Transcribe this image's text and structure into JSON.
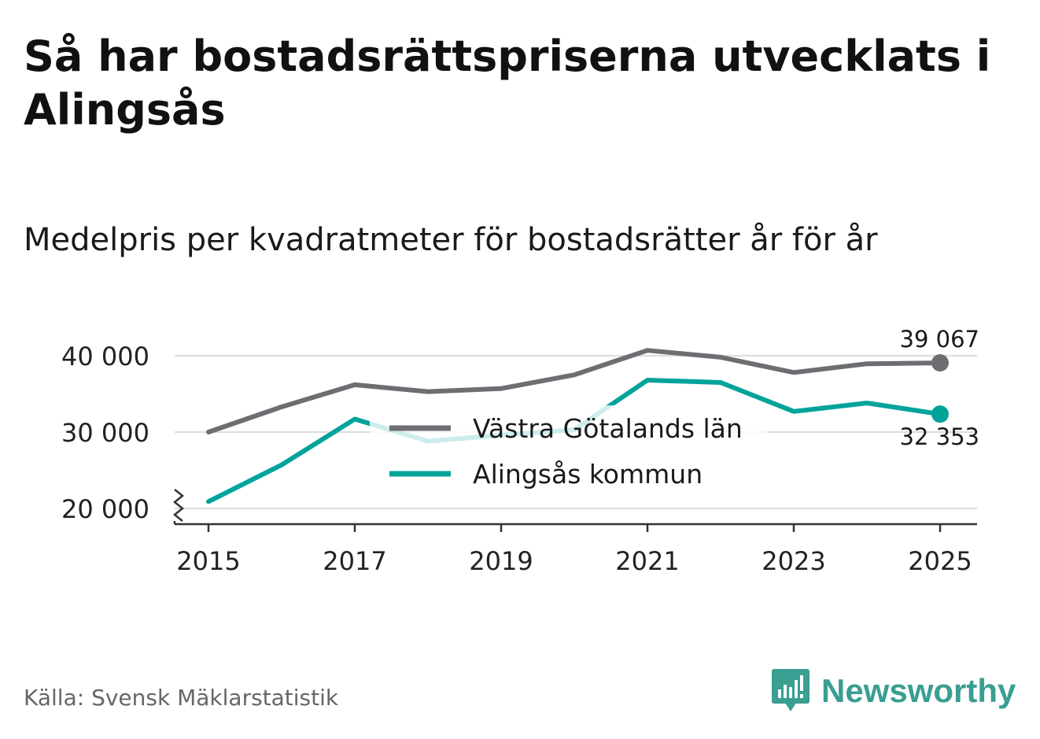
{
  "title": "Så har bostadsrättspriserna utvecklats i Alingsås",
  "subtitle": "Medelpris per kvadratmeter för bostadsrätter år för år",
  "source": "Källa: Svensk Mäklarstatistik",
  "brand": "Newsworthy",
  "colors": {
    "gray": "#6d6d72",
    "teal": "#00a39a",
    "grid": "#dcdcdc",
    "axis": "#333333",
    "brand": "#3a9e92"
  },
  "chart_data": {
    "type": "line",
    "x": [
      2015,
      2016,
      2017,
      2018,
      2019,
      2020,
      2021,
      2022,
      2023,
      2024,
      2025
    ],
    "x_tick_labels": [
      "2015",
      "2017",
      "2019",
      "2021",
      "2023",
      "2025"
    ],
    "y_tick_labels": [
      "40 000",
      "30 000",
      "20 000"
    ],
    "ylim": [
      20000,
      40000
    ],
    "y_axis_break": true,
    "grid": true,
    "legend_position": "center",
    "series": [
      {
        "name": "Västra Götalands län",
        "color": "#6d6d72",
        "values": [
          30000,
          33300,
          36200,
          35300,
          35700,
          37500,
          40700,
          39800,
          37800,
          38950,
          39067
        ],
        "end_label": "39 067"
      },
      {
        "name": "Alingsås kommun",
        "color": "#00a39a",
        "values": [
          20900,
          25700,
          31700,
          28800,
          29600,
          30300,
          36800,
          36500,
          32700,
          33800,
          32353
        ],
        "end_label": "32 353"
      }
    ]
  }
}
